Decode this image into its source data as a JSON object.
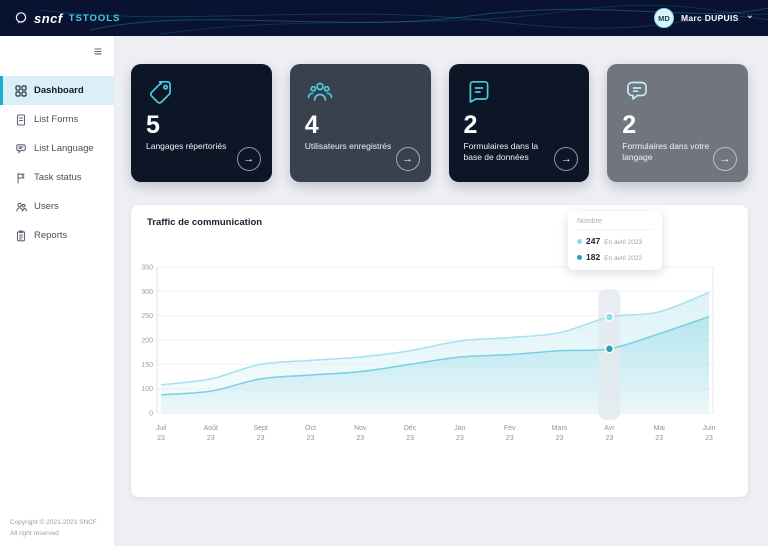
{
  "topbar": {
    "logo_text": "sncf",
    "app_name": "TSTOOLS",
    "user": {
      "initials": "MD",
      "name": "Marc DUPUIS"
    }
  },
  "icons": {
    "arrow": "→",
    "chevron_down": "⌄",
    "hamburger": "≡"
  },
  "sidebar": {
    "items": [
      {
        "label": "Dashboard",
        "active": true
      },
      {
        "label": "List Forms"
      },
      {
        "label": "List Language"
      },
      {
        "label": "Task status"
      },
      {
        "label": "Users"
      },
      {
        "label": "Reports"
      }
    ],
    "footer": {
      "line1": "Copyright © 2021-2023 SNCF",
      "line2": "All right reserved"
    }
  },
  "cards": [
    {
      "value": "5",
      "label": "Langages répertoriés"
    },
    {
      "value": "4",
      "label": "Utilisateurs enregistrés"
    },
    {
      "value": "2",
      "label": "Formulaires dans la base de données"
    },
    {
      "value": "2",
      "label": "Formulaires dans votre langage"
    }
  ],
  "chart": {
    "title": "Traffic de communication",
    "tooltip": {
      "title": "Nombre",
      "rows": [
        {
          "value": "247",
          "label": "En avril 2023",
          "color": "#8fdcec"
        },
        {
          "value": "182",
          "label": "En avril 2022",
          "color": "#2f9fb4"
        }
      ]
    }
  },
  "chart_data": {
    "type": "area",
    "title": "Traffic de communication",
    "x": [
      "Juil",
      "Août",
      "Sept",
      "Oct",
      "Nov",
      "Déc",
      "Jan",
      "Fév",
      "Mars",
      "Avr",
      "Mai",
      "Juin"
    ],
    "x_sub": "23",
    "yticks": [
      0,
      100,
      150,
      200,
      250,
      300,
      350
    ],
    "ylim": [
      0,
      350
    ],
    "grid": true,
    "highlight_index": 9,
    "series": [
      {
        "name": "En avril 2023",
        "color": "#a5e2ef",
        "fill": "#d9f1f7",
        "dot": "#8fdcec",
        "values": [
          108,
          120,
          150,
          158,
          165,
          178,
          198,
          205,
          215,
          247,
          258,
          298
        ]
      },
      {
        "name": "En avril 2022",
        "color": "#79d0e0",
        "fill": "#b7e6ef",
        "dot": "#2f9fb4",
        "values": [
          75,
          90,
          120,
          128,
          135,
          150,
          165,
          170,
          178,
          182,
          213,
          248
        ]
      }
    ]
  }
}
